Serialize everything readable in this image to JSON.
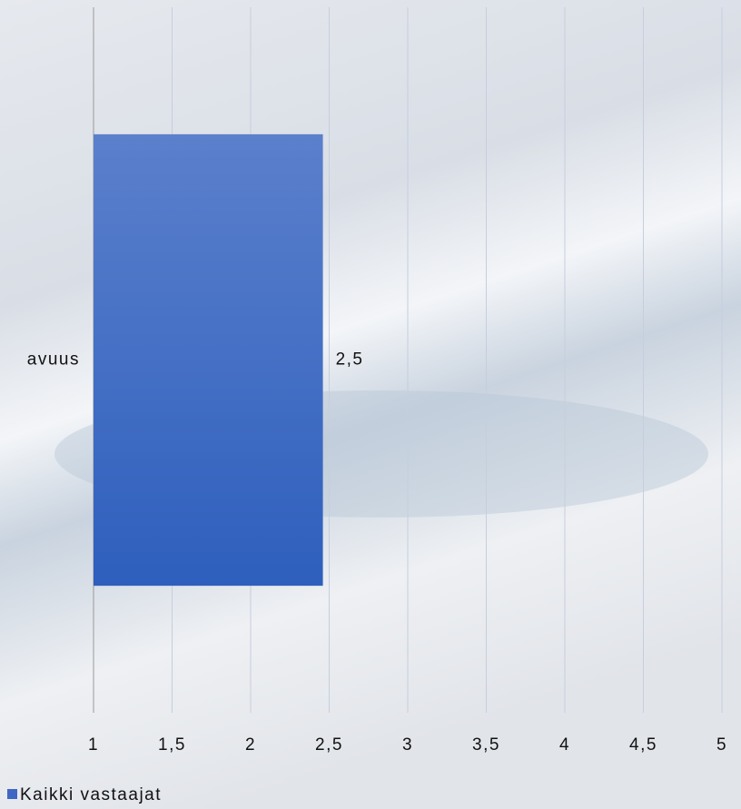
{
  "chart_data": {
    "type": "hbar",
    "categories": [
      "avuus"
    ],
    "series": [
      {
        "name": "Kaikki vastaajat",
        "color": "#3f68c4",
        "values": [
          2.46
        ],
        "value_labels": [
          "2,5"
        ]
      }
    ],
    "xlim": [
      1,
      5
    ],
    "xticks": [
      1,
      {
        "value": 1.5,
        "label": "1,5"
      },
      2,
      {
        "value": 2.5,
        "label": "2,5"
      },
      3,
      {
        "value": 3.5,
        "label": "3,5"
      },
      4,
      {
        "value": 4.5,
        "label": "4,5"
      },
      5
    ],
    "grid": true,
    "legend": "bottom-left"
  }
}
